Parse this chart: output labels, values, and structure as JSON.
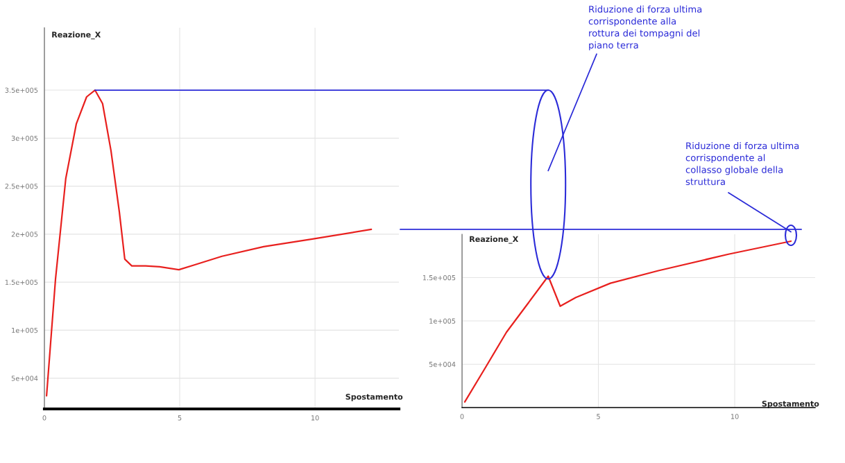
{
  "chart_data": [
    {
      "type": "line",
      "xlabel": "Spostamento",
      "ylabel": "Reazione_X",
      "grid": true,
      "marker": "none",
      "line_style": "solid",
      "xlim": [
        0,
        13.1
      ],
      "xticks": [
        0,
        5,
        10
      ],
      "ylim": [
        18000,
        415000
      ],
      "yticks": [
        {
          "value": 50000,
          "label": "5e+004"
        },
        {
          "value": 100000,
          "label": "1e+005"
        },
        {
          "value": 150000,
          "label": "1.5e+005"
        },
        {
          "value": 200000,
          "label": "2e+005"
        },
        {
          "value": 250000,
          "label": "2.5e+005"
        },
        {
          "value": 300000,
          "label": "3e+005"
        },
        {
          "value": 350000,
          "label": "3.5e+005"
        }
      ],
      "series": [
        {
          "color": "#e8201e",
          "x": [
            0.08,
            0.41,
            0.79,
            1.18,
            1.56,
            1.87,
            2.15,
            2.46,
            2.77,
            2.97,
            3.23,
            3.74,
            4.26,
            4.97,
            5.54,
            6.56,
            8.1,
            9.9,
            12.08
          ],
          "values": [
            31700,
            153000,
            258000,
            315000,
            343000,
            350000,
            336000,
            287000,
            223000,
            174000,
            167000,
            167000,
            166000,
            163000,
            168000,
            177000,
            187000,
            195000,
            205000
          ]
        }
      ],
      "ref_lines": [
        {
          "axis": "y",
          "value": 350000,
          "color": "#2b2bd8"
        }
      ]
    },
    {
      "type": "line",
      "xlabel": "Spostamento",
      "ylabel": "Reazione_X",
      "grid": true,
      "marker": "none",
      "line_style": "solid",
      "xlim": [
        0,
        12.95
      ],
      "xticks": [
        0,
        5,
        10
      ],
      "ylim": [
        0,
        200000
      ],
      "yticks": [
        {
          "value": 50000,
          "label": "5e+004"
        },
        {
          "value": 100000,
          "label": "1e+005"
        },
        {
          "value": 150000,
          "label": "1.5e+005"
        }
      ],
      "series": [
        {
          "color": "#e8201e",
          "x": [
            0.1,
            0.87,
            1.63,
            2.39,
            3.16,
            3.6,
            4.17,
            5.44,
            7.2,
            9.77,
            12.06
          ],
          "values": [
            6500,
            46800,
            87000,
            119000,
            151600,
            117000,
            127000,
            143500,
            158000,
            177000,
            192000
          ]
        }
      ],
      "annotations": [
        "Riduzione di forza ultima\ncorrispondente alla\nrottura dei tompagni del\npiano terra",
        "Riduzione di forza ultima\ncorrispondente al\ncollasso globale della\nstruttura"
      ]
    }
  ]
}
